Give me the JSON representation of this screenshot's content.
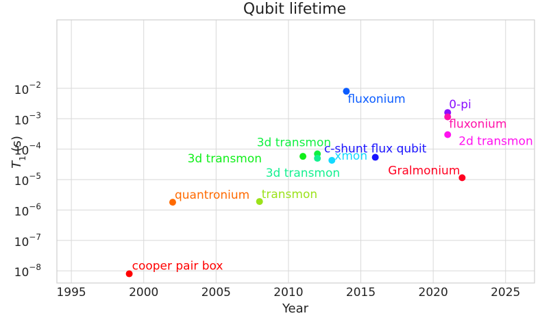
{
  "chart_data": {
    "type": "scatter",
    "title": "Qubit lifetime",
    "xlabel": "Year",
    "ylabel": "T1 (s)",
    "xlim": [
      1994,
      2027
    ],
    "ylim_exponent": [
      -8.4,
      0.25
    ],
    "y_scale": "log",
    "grid": true,
    "x_ticks": [
      1995,
      2000,
      2005,
      2010,
      2015,
      2020,
      2025
    ],
    "y_tick_exponents": [
      -8,
      -7,
      -6,
      -5,
      -4,
      -3,
      -2
    ],
    "points": [
      {
        "label": "cooper pair box",
        "x": 1999,
        "y": 8e-09,
        "color": "#ff0000"
      },
      {
        "label": "quantronium",
        "x": 2002,
        "y": 1.8e-06,
        "color": "#ff6a00"
      },
      {
        "label": "transmon",
        "x": 2008,
        "y": 1.9e-06,
        "color": "#9be21a"
      },
      {
        "label": "3d transmon",
        "x": 2011,
        "y": 5.8e-05,
        "color": "#10ef1a"
      },
      {
        "label": "3d transmon",
        "x": 2012,
        "y": 7e-05,
        "color": "#10f040"
      },
      {
        "label": "3d transmon",
        "x": 2012,
        "y": 5e-05,
        "color": "#14f090"
      },
      {
        "label": "xmon",
        "x": 2013,
        "y": 4.3e-05,
        "color": "#12d9ff"
      },
      {
        "label": "fluxonium",
        "x": 2014,
        "y": 0.008,
        "color": "#0b5cff"
      },
      {
        "label": "c-shunt flux qubit",
        "x": 2016,
        "y": 5.4e-05,
        "color": "#1a13ff"
      },
      {
        "label": "0-pi",
        "x": 2021,
        "y": 0.0016,
        "color": "#8a10ff"
      },
      {
        "label": "fluxonium",
        "x": 2021,
        "y": 0.00115,
        "color": "#ff11a9"
      },
      {
        "label": "2d transmon",
        "x": 2021,
        "y": 0.0003,
        "color": "#ff11f0"
      },
      {
        "label": "Gralmonium",
        "x": 2022,
        "y": 1.15e-05,
        "color": "#ff0020"
      }
    ]
  }
}
